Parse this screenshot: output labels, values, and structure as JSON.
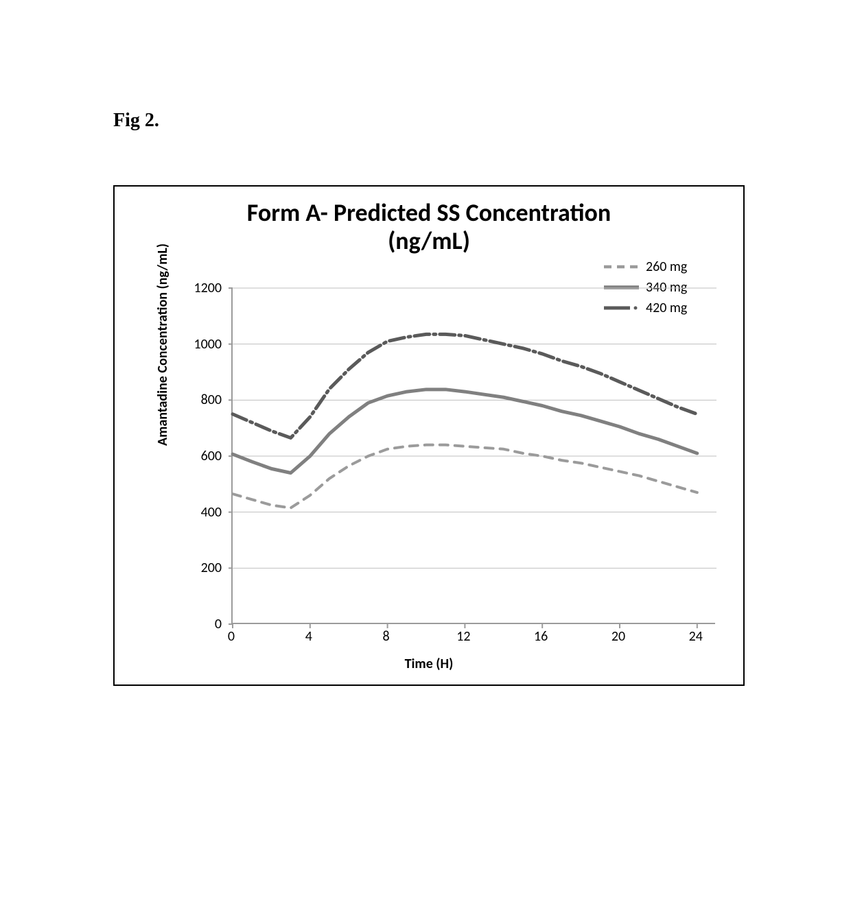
{
  "figure_label": "Fig 2.",
  "chart": {
    "type": "line",
    "title_line1": "Form A- Predicted SS Concentration",
    "title_line2": "(ng/mL)",
    "title_fontsize": 36,
    "title_fontweight": "bold",
    "background_color": "#ffffff",
    "border_color": "#000000",
    "axis_color": "#9b9b9b",
    "gridline_color": "#bfbfbf",
    "gridline_width": 1,
    "x": {
      "label": "Time (H)",
      "label_fontsize": 20,
      "label_fontweight": "bold",
      "min": 0,
      "max": 25,
      "ticks": [
        0,
        4,
        8,
        12,
        16,
        20,
        24
      ],
      "tick_fontsize": 20
    },
    "y": {
      "label": "Amantadine Concentration (ng/mL)",
      "label_fontsize": 20,
      "label_fontweight": "bold",
      "min": 0,
      "max": 1200,
      "ticks": [
        0,
        200,
        400,
        600,
        800,
        1000,
        1200
      ],
      "tick_fontsize": 20
    },
    "series": [
      {
        "name": "260 mg",
        "color": "#9b9b9b",
        "line_width": 4,
        "dash": "dashed",
        "points": [
          [
            0,
            465
          ],
          [
            1,
            445
          ],
          [
            2,
            425
          ],
          [
            3,
            415
          ],
          [
            4,
            460
          ],
          [
            5,
            520
          ],
          [
            6,
            565
          ],
          [
            7,
            600
          ],
          [
            8,
            625
          ],
          [
            9,
            635
          ],
          [
            10,
            640
          ],
          [
            11,
            640
          ],
          [
            12,
            635
          ],
          [
            13,
            630
          ],
          [
            14,
            625
          ],
          [
            15,
            610
          ],
          [
            16,
            600
          ],
          [
            17,
            585
          ],
          [
            18,
            575
          ],
          [
            19,
            560
          ],
          [
            20,
            545
          ],
          [
            21,
            530
          ],
          [
            22,
            510
          ],
          [
            23,
            490
          ],
          [
            24,
            470
          ]
        ]
      },
      {
        "name": "340 mg",
        "color": "#808080",
        "line_width": 5,
        "dash": "solid",
        "points": [
          [
            0,
            607
          ],
          [
            1,
            580
          ],
          [
            2,
            555
          ],
          [
            3,
            540
          ],
          [
            4,
            600
          ],
          [
            5,
            680
          ],
          [
            6,
            740
          ],
          [
            7,
            790
          ],
          [
            8,
            815
          ],
          [
            9,
            830
          ],
          [
            10,
            838
          ],
          [
            11,
            838
          ],
          [
            12,
            830
          ],
          [
            13,
            820
          ],
          [
            14,
            810
          ],
          [
            15,
            795
          ],
          [
            16,
            780
          ],
          [
            17,
            760
          ],
          [
            18,
            745
          ],
          [
            19,
            725
          ],
          [
            20,
            705
          ],
          [
            21,
            680
          ],
          [
            22,
            660
          ],
          [
            23,
            635
          ],
          [
            24,
            610
          ]
        ]
      },
      {
        "name": "420 mg",
        "color": "#5a5a5a",
        "line_width": 5,
        "dash": "dash-dot",
        "points": [
          [
            0,
            750
          ],
          [
            1,
            720
          ],
          [
            2,
            690
          ],
          [
            3,
            665
          ],
          [
            4,
            740
          ],
          [
            5,
            840
          ],
          [
            6,
            910
          ],
          [
            7,
            970
          ],
          [
            8,
            1010
          ],
          [
            9,
            1025
          ],
          [
            10,
            1035
          ],
          [
            11,
            1035
          ],
          [
            12,
            1030
          ],
          [
            13,
            1015
          ],
          [
            14,
            1000
          ],
          [
            15,
            985
          ],
          [
            16,
            965
          ],
          [
            17,
            940
          ],
          [
            18,
            920
          ],
          [
            19,
            895
          ],
          [
            20,
            865
          ],
          [
            21,
            835
          ],
          [
            22,
            805
          ],
          [
            23,
            775
          ],
          [
            24,
            750
          ]
        ]
      }
    ],
    "legend": {
      "position": "top-right",
      "fontsize": 20,
      "items": [
        "260 mg",
        "340 mg",
        "420 mg"
      ]
    }
  }
}
